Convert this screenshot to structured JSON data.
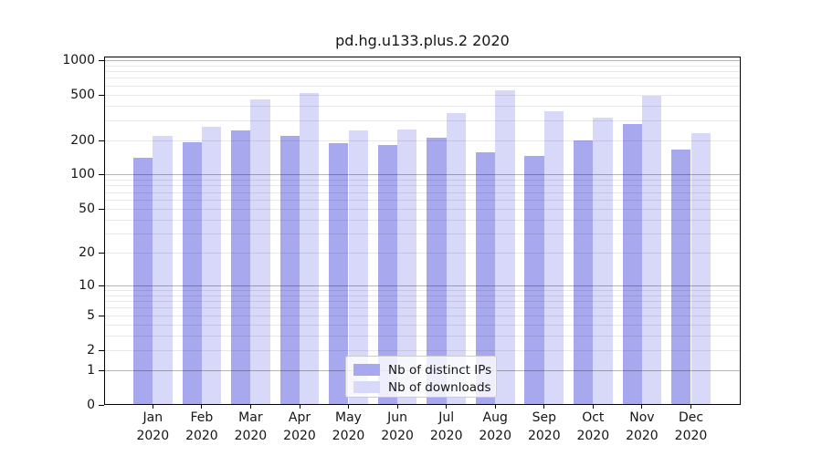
{
  "chart_data": {
    "type": "bar",
    "title": "pd.hg.u133.plus.2 2020",
    "categories": [
      "Jan 2020",
      "Feb 2020",
      "Mar 2020",
      "Apr 2020",
      "May 2020",
      "Jun 2020",
      "Jul 2020",
      "Aug 2020",
      "Sep 2020",
      "Oct 2020",
      "Nov 2020",
      "Dec 2020"
    ],
    "months": [
      "Jan",
      "Feb",
      "Mar",
      "Apr",
      "May",
      "Jun",
      "Jul",
      "Aug",
      "Sep",
      "Oct",
      "Nov",
      "Dec"
    ],
    "year": "2020",
    "series": [
      {
        "name": "Nb of distinct IPs",
        "color": "#a8a8ef",
        "values": [
          140,
          193,
          242,
          218,
          188,
          182,
          210,
          157,
          146,
          200,
          276,
          165
        ]
      },
      {
        "name": "Nb of downloads",
        "color": "#d8d8f8",
        "values": [
          218,
          262,
          452,
          520,
          245,
          246,
          345,
          540,
          355,
          313,
          490,
          230
        ]
      }
    ],
    "y_axis": {
      "scale": "log1p",
      "ticks": [
        0,
        1,
        2,
        5,
        10,
        20,
        50,
        100,
        200,
        500,
        1000
      ],
      "max": 1070
    },
    "grid": {
      "orientation": "horizontal",
      "drawn_above_bars": true,
      "major_values": [
        1,
        10,
        100,
        1000
      ],
      "minor_values": [
        2,
        3,
        4,
        5,
        6,
        7,
        8,
        9,
        20,
        30,
        40,
        50,
        60,
        70,
        80,
        90,
        200,
        300,
        400,
        500,
        600,
        700,
        800,
        900
      ],
      "major_color": "rgba(0,0,0,0.29)",
      "minor_color": "rgba(0,0,0,0.085)"
    },
    "legend": {
      "location": "lower center",
      "background": "rgba(255,255,255,0.8)",
      "border_color": "#cccccc"
    },
    "colors": {
      "axis": "#000000",
      "text": "#151515"
    }
  }
}
